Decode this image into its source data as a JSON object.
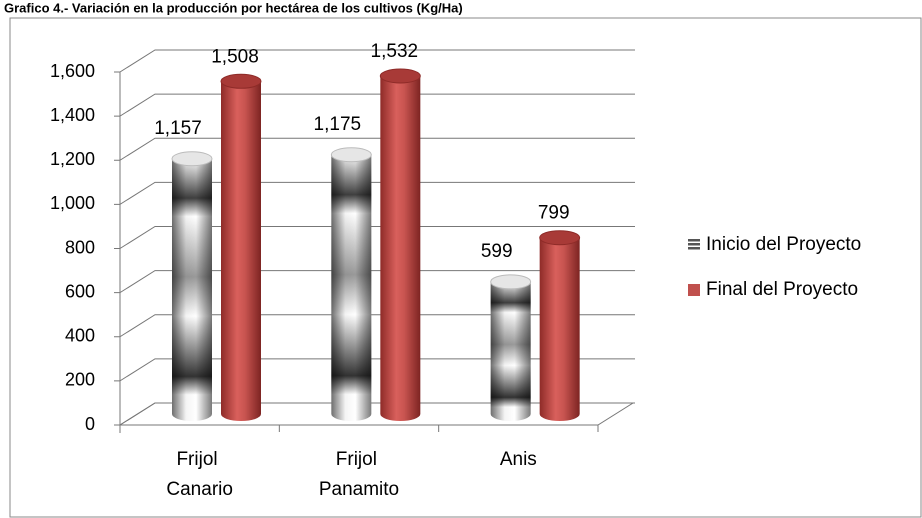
{
  "chart_data": {
    "type": "bar3d",
    "title": "Grafico 4.- Variación en la producción por hectárea de los cultivos (Kg/Ha)",
    "categories": [
      "Frijol Canario",
      "Frijol Panamito",
      "Anis"
    ],
    "series": [
      {
        "name": "Inicio del Proyecto",
        "color": "#c8c8c8",
        "values": [
          1157,
          1175,
          599
        ],
        "value_labels": [
          "1,157",
          "1,175",
          "599"
        ]
      },
      {
        "name": "Final del Proyecto",
        "color": "#c0504d",
        "values": [
          1508,
          1532,
          799
        ],
        "value_labels": [
          "1,508",
          "1,532",
          "799"
        ]
      }
    ],
    "ylim": [
      0,
      1600
    ],
    "yticks": [
      0,
      200,
      400,
      600,
      800,
      {
        "value": 1000,
        "label": "1,000"
      },
      {
        "value": 1200,
        "label": "1,200"
      },
      {
        "value": 1400,
        "label": "1,400"
      },
      {
        "value": 1600,
        "label": "1,600"
      }
    ],
    "grid": true,
    "legend": "right"
  }
}
